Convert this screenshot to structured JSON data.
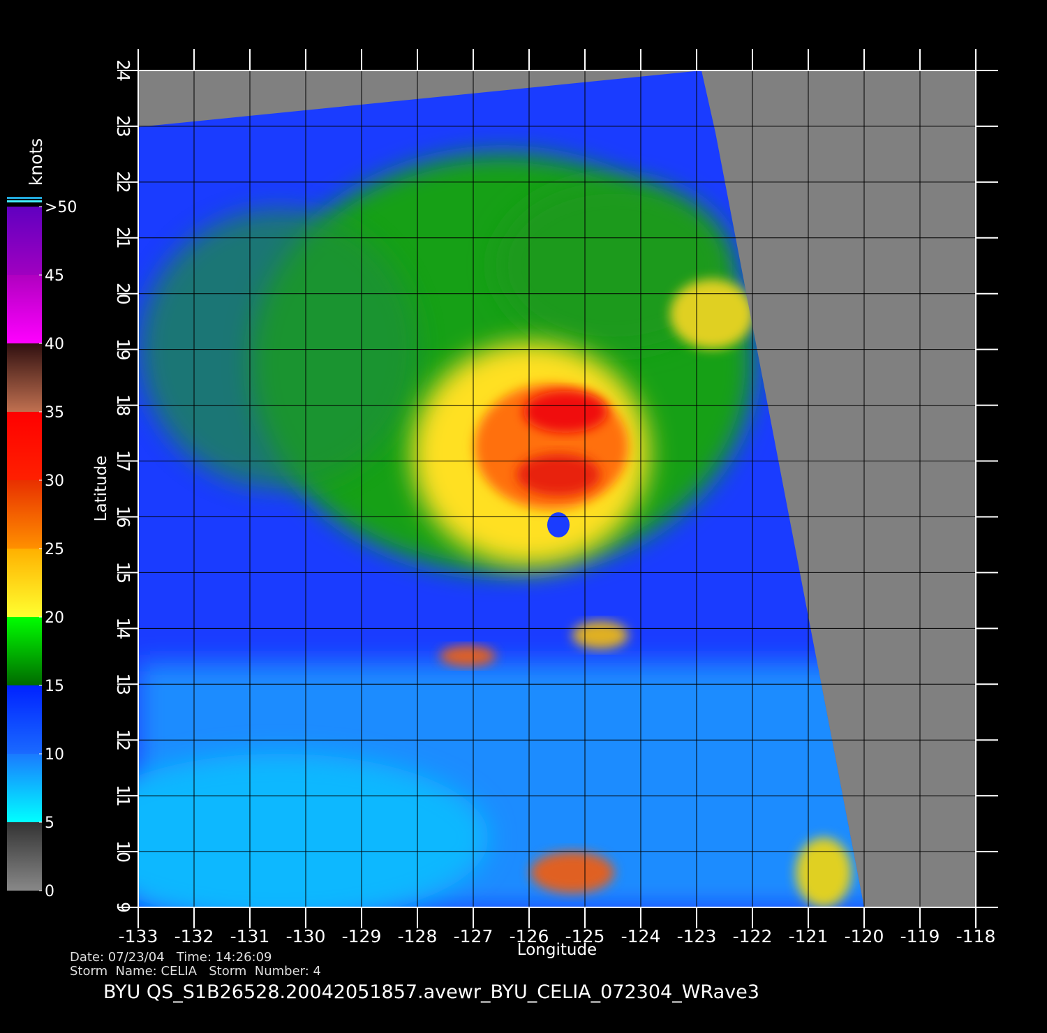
{
  "map": {
    "xlabel": "Longitude",
    "ylabel": "Latitude",
    "xlim": [
      -133,
      -118
    ],
    "ylim": [
      9,
      24
    ],
    "xticks": [
      -133,
      -132,
      -131,
      -130,
      -129,
      -128,
      -127,
      -126,
      -125,
      -124,
      -123,
      -122,
      -121,
      -120,
      -119,
      -118
    ],
    "yticks": [
      9,
      10,
      11,
      12,
      13,
      14,
      15,
      16,
      17,
      18,
      19,
      20,
      21,
      22,
      23,
      24
    ]
  },
  "colorbar": {
    "label": "knots",
    "lim": [
      0,
      50
    ],
    "ticks": [
      0,
      5,
      10,
      15,
      20,
      25,
      30,
      35,
      40,
      45,
      {
        "value": 50,
        "label": ">50"
      }
    ]
  },
  "footer": {
    "date_time": "Date: 07/23/04   Time: 14:26:09",
    "storm": "Storm  Name: CELIA   Storm  Number: 4",
    "title": "BYU  QS_S1B26528.20042051857.avewr_BYU_CELIA_072304_WRave3"
  }
}
